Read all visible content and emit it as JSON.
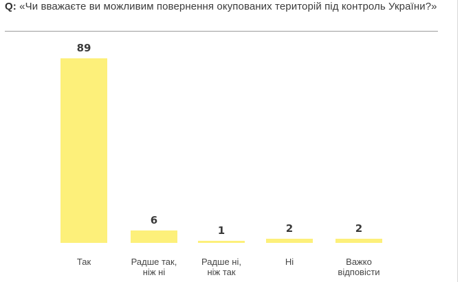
{
  "question": {
    "prefix": "Q:",
    "text": "«Чи вважаєте ви можливим повернення окупованих територій під контроль України?»"
  },
  "chart_data": {
    "type": "bar",
    "categories": [
      [
        "Так"
      ],
      [
        "Радше так,",
        "ніж ні"
      ],
      [
        "Радше ні,",
        "ніж так"
      ],
      [
        "Ні"
      ],
      [
        "Важко",
        "відповісти"
      ]
    ],
    "values": [
      89,
      6,
      1,
      2,
      2
    ],
    "bar_color": "#fdf07a",
    "grid": false,
    "legend": "none"
  }
}
